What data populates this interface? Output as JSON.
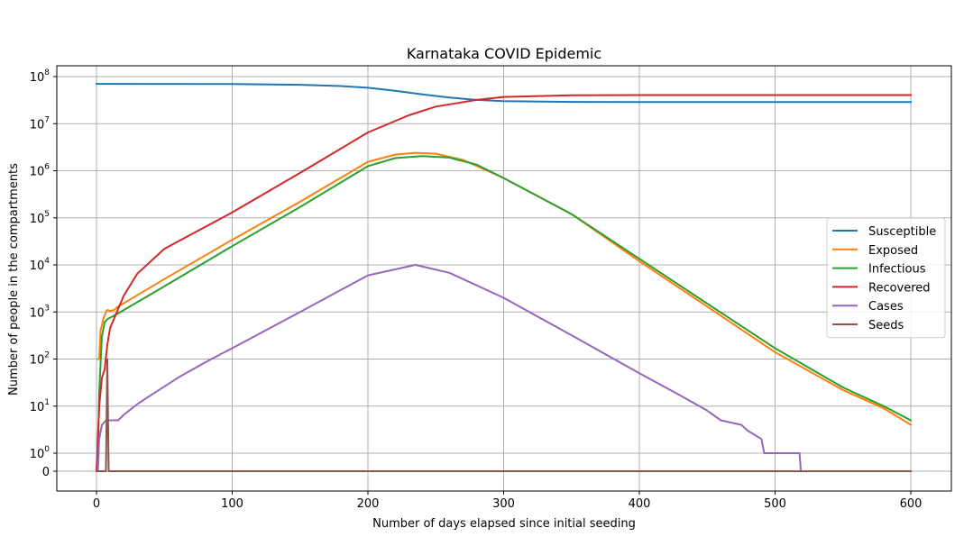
{
  "chart_data": {
    "type": "line",
    "title": "Karnataka COVID Epidemic",
    "xlabel": "Number of days elapsed since initial seeding",
    "ylabel": "Number of people in the compartments",
    "xlim": [
      -30,
      630
    ],
    "x_ticks": [
      0,
      100,
      200,
      300,
      400,
      500,
      600
    ],
    "y_scale": "symlog",
    "y_ticks": [
      {
        "value": 0,
        "base": "0",
        "exp": ""
      },
      {
        "value": 1,
        "base": "10",
        "exp": "0"
      },
      {
        "value": 10,
        "base": "10",
        "exp": "1"
      },
      {
        "value": 100,
        "base": "10",
        "exp": "2"
      },
      {
        "value": 1000,
        "base": "10",
        "exp": "3"
      },
      {
        "value": 10000,
        "base": "10",
        "exp": "4"
      },
      {
        "value": 100000,
        "base": "10",
        "exp": "5"
      },
      {
        "value": 1000000,
        "base": "10",
        "exp": "6"
      },
      {
        "value": 10000000,
        "base": "10",
        "exp": "7"
      },
      {
        "value": 100000000,
        "base": "10",
        "exp": "8"
      }
    ],
    "grid": true,
    "legend_position": "center-right",
    "series": [
      {
        "name": "Susceptible",
        "color": "#1f77b4",
        "points": [
          [
            0,
            70000000
          ],
          [
            100,
            69500000
          ],
          [
            150,
            67000000
          ],
          [
            180,
            63000000
          ],
          [
            200,
            58000000
          ],
          [
            220,
            50000000
          ],
          [
            240,
            42000000
          ],
          [
            260,
            36000000
          ],
          [
            280,
            32000000
          ],
          [
            300,
            30000000
          ],
          [
            350,
            29000000
          ],
          [
            400,
            28800000
          ],
          [
            600,
            28700000
          ]
        ]
      },
      {
        "name": "Exposed",
        "color": "#ff7f0e",
        "points": [
          [
            1,
            100
          ],
          [
            2,
            100
          ],
          [
            3,
            400
          ],
          [
            5,
            700
          ],
          [
            7,
            1000
          ],
          [
            8,
            1100
          ],
          [
            10,
            1050
          ],
          [
            13,
            1100
          ],
          [
            15,
            1250
          ],
          [
            50,
            5000
          ],
          [
            100,
            34000
          ],
          [
            150,
            220000
          ],
          [
            200,
            1550000
          ],
          [
            220,
            2200000
          ],
          [
            235,
            2400000
          ],
          [
            250,
            2300000
          ],
          [
            270,
            1700000
          ],
          [
            300,
            700000
          ],
          [
            350,
            120000
          ],
          [
            400,
            12000
          ],
          [
            450,
            1300
          ],
          [
            500,
            140
          ],
          [
            550,
            22
          ],
          [
            580,
            9
          ],
          [
            600,
            4
          ]
        ]
      },
      {
        "name": "Infectious",
        "color": "#2ca02c",
        "points": [
          [
            1,
            0
          ],
          [
            2,
            20
          ],
          [
            4,
            300
          ],
          [
            6,
            600
          ],
          [
            8,
            700
          ],
          [
            15,
            900
          ],
          [
            50,
            3500
          ],
          [
            100,
            25000
          ],
          [
            150,
            170000
          ],
          [
            200,
            1250000
          ],
          [
            220,
            1850000
          ],
          [
            240,
            2050000
          ],
          [
            260,
            1900000
          ],
          [
            280,
            1350000
          ],
          [
            300,
            700000
          ],
          [
            350,
            120000
          ],
          [
            400,
            13500
          ],
          [
            450,
            1500
          ],
          [
            500,
            170
          ],
          [
            550,
            25
          ],
          [
            580,
            10
          ],
          [
            600,
            5
          ]
        ]
      },
      {
        "name": "Recovered",
        "color": "#d62728",
        "points": [
          [
            0,
            0
          ],
          [
            2,
            10
          ],
          [
            4,
            40
          ],
          [
            6,
            60
          ],
          [
            8,
            200
          ],
          [
            10,
            450
          ],
          [
            20,
            2200
          ],
          [
            30,
            6500
          ],
          [
            50,
            22000
          ],
          [
            100,
            130000
          ],
          [
            150,
            900000
          ],
          [
            200,
            6500000
          ],
          [
            230,
            15000000
          ],
          [
            250,
            23000000
          ],
          [
            280,
            32000000
          ],
          [
            300,
            37000000
          ],
          [
            350,
            40000000
          ],
          [
            400,
            40500000
          ],
          [
            600,
            40500000
          ]
        ]
      },
      {
        "name": "Cases",
        "color": "#9467bd",
        "points": [
          [
            1,
            0
          ],
          [
            2,
            2
          ],
          [
            4,
            4
          ],
          [
            7,
            5
          ],
          [
            16,
            5
          ],
          [
            20,
            6.5
          ],
          [
            30,
            11
          ],
          [
            40,
            17
          ],
          [
            60,
            40
          ],
          [
            80,
            85
          ],
          [
            100,
            170
          ],
          [
            150,
            1000
          ],
          [
            200,
            6000
          ],
          [
            235,
            10000
          ],
          [
            260,
            6800
          ],
          [
            300,
            2000
          ],
          [
            350,
            320
          ],
          [
            400,
            50
          ],
          [
            430,
            17
          ],
          [
            450,
            8
          ],
          [
            460,
            5
          ],
          [
            475,
            4
          ],
          [
            480,
            3
          ],
          [
            490,
            2
          ],
          [
            492,
            1
          ],
          [
            518,
            1
          ],
          [
            519,
            0
          ],
          [
            600,
            0
          ]
        ]
      },
      {
        "name": "Seeds",
        "color": "#8c564b",
        "points": [
          [
            0,
            0
          ],
          [
            7,
            0
          ],
          [
            8,
            100
          ],
          [
            9,
            0
          ],
          [
            600,
            0
          ]
        ]
      }
    ]
  }
}
